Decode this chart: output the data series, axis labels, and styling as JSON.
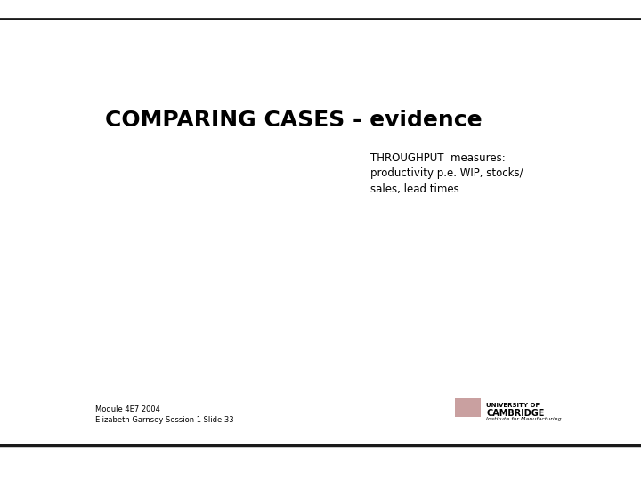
{
  "title": "COMPARING CASES - evidence",
  "subtitle_line1": "THROUGHPUT  measures:",
  "subtitle_line2": "productivity p.e. WIP, stocks/",
  "subtitle_line3": "sales, lead times",
  "footer_left_line1": "Module 4E7 2004",
  "footer_left_line2": "Elizabeth Garnsey Session 1 Slide 33",
  "footer_right_line1": "UNIVERSITY OF",
  "footer_right_line2": "CAMBRIDGE",
  "footer_right_line3": "Institute for Manufacturing",
  "bg_color": "#ffffff",
  "title_color": "#000000",
  "subtitle_color": "#000000",
  "footer_color": "#000000",
  "top_bar_color": "#1a1a1a",
  "bottom_bar_color": "#1a1a1a",
  "title_fontsize": 18,
  "subtitle_fontsize": 8.5,
  "footer_fontsize": 6,
  "logo_color": "#c9a0a0"
}
